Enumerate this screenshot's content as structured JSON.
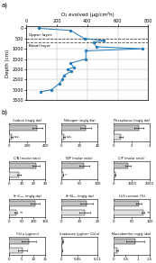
{
  "chart_data": [
    {
      "type": "line",
      "panel_label": "a)",
      "xlabel": "O₂ evolved (μg/cm²h)",
      "ylabel": "Depth (cm)",
      "x": [
        80,
        290,
        380,
        510,
        440,
        460,
        760,
        390,
        390,
        290,
        310,
        270,
        295,
        245,
        235,
        215,
        165,
        95
      ],
      "values": [
        0,
        100,
        500,
        600,
        700,
        900,
        1000,
        1100,
        1500,
        1700,
        1900,
        2000,
        2100,
        2300,
        2500,
        2700,
        3000,
        3100
      ],
      "xlim": [
        0,
        800
      ],
      "xticks": [
        0,
        200,
        400,
        600,
        800
      ],
      "ylim": [
        3500,
        -100
      ],
      "yticks": [
        0,
        500,
        1000,
        1500,
        2000,
        2500,
        3000,
        3500
      ],
      "marker": "o",
      "line_style": "solid",
      "grid": true,
      "hlines": [
        {
          "y": 500,
          "label": "Upper layer"
        },
        {
          "y": 700,
          "label": "Basal layer"
        }
      ]
    },
    {
      "type": "bar",
      "orientation": "horizontal",
      "panel_label": "b)",
      "title": "Carbon (mg/g dw)",
      "categories": [
        null,
        null
      ],
      "values": [
        310,
        28
      ],
      "errors": [
        55,
        8
      ],
      "colors": [
        "#c0c0c0",
        "#e0e0e0"
      ],
      "xlim": [
        0,
        400
      ],
      "xticks": [
        0,
        200,
        400
      ],
      "grid": false,
      "tick_labels": "x",
      "annotations": [
        {
          "text": "s.s.",
          "bar": 1
        }
      ]
    },
    {
      "type": "bar",
      "orientation": "horizontal",
      "title": "Nitrogen (mg/g dw)",
      "categories": [
        null,
        null
      ],
      "values": [
        27,
        3
      ],
      "errors": [
        6,
        0.8
      ],
      "colors": [
        "#c0c0c0",
        "#e0e0e0"
      ],
      "xlim": [
        0,
        40
      ],
      "xticks": [
        0,
        20,
        40
      ],
      "grid": false,
      "tick_labels": "x",
      "annotations": [
        {
          "text": "s.s.",
          "bar": 1
        }
      ]
    },
    {
      "type": "bar",
      "orientation": "horizontal",
      "title": "Phosphorus (mg/g dw)",
      "categories": [
        null,
        null
      ],
      "values": [
        2.8,
        0.8
      ],
      "errors": [
        0.5,
        0.2
      ],
      "colors": [
        "#c0c0c0",
        "#e0e0e0"
      ],
      "xlim": [
        0,
        4
      ],
      "xticks": [
        0,
        2,
        4
      ],
      "grid": false,
      "tick_labels": "x"
    },
    {
      "type": "bar",
      "orientation": "horizontal",
      "title": "C/N (molar ratio)",
      "categories": [
        null,
        null
      ],
      "values": [
        22,
        8
      ],
      "errors": [
        3,
        1.5
      ],
      "colors": [
        "#c0c0c0",
        "#e0e0e0"
      ],
      "xlim": [
        0,
        30
      ],
      "xticks": [
        0,
        10,
        20,
        30
      ],
      "grid": false,
      "tick_labels": "x"
    },
    {
      "type": "bar",
      "orientation": "horizontal",
      "title": "N/P (molar ratio)",
      "categories": [
        null,
        null
      ],
      "values": [
        63,
        4
      ],
      "errors": [
        14,
        0.8
      ],
      "colors": [
        "#c0c0c0",
        "#e0e0e0"
      ],
      "xlim": [
        0,
        100
      ],
      "xticks": [
        0,
        50,
        100
      ],
      "grid": false,
      "tick_labels": "x",
      "annotations": [
        {
          "text": "*",
          "bar": 1
        }
      ]
    },
    {
      "type": "bar",
      "orientation": "horizontal",
      "title": "C/P (molar ratio)",
      "categories": [
        null,
        null
      ],
      "values": [
        800,
        85
      ],
      "errors": [
        150,
        18
      ],
      "colors": [
        "#c0c0c0",
        "#e0e0e0"
      ],
      "xlim": [
        0,
        2000
      ],
      "xticks": [
        0,
        1000,
        2000
      ],
      "grid": false,
      "tick_labels": "x"
    },
    {
      "type": "bar",
      "orientation": "horizontal",
      "title": "δ¹³Cₐₙₐ (mg/g dw)",
      "categories": [
        null,
        null
      ],
      "values": [
        108,
        28
      ],
      "errors": [
        18,
        6
      ],
      "colors": [
        "#c0c0c0",
        "#e0e0e0"
      ],
      "xlim": [
        0,
        150
      ],
      "xticks": [
        0,
        50,
        100,
        150
      ],
      "grid": false,
      "tick_labels": "x",
      "annotations": [
        {
          "text": "**",
          "bar": 1
        }
      ]
    },
    {
      "type": "bar",
      "orientation": "horizontal",
      "title": "δ¹⁵Nₐₙₐ (mg/g dw)",
      "categories": [
        null,
        null
      ],
      "values": [
        14,
        13
      ],
      "errors": [
        3.5,
        3
      ],
      "colors": [
        "#c0c0c0",
        "#e0e0e0"
      ],
      "xlim": [
        0,
        20
      ],
      "xticks": [
        0,
        10,
        20
      ],
      "grid": false,
      "tick_labels": "x"
    },
    {
      "type": "bar",
      "orientation": "horizontal",
      "title": "H₂O content (%)",
      "categories": [
        null,
        null
      ],
      "values": [
        70,
        82
      ],
      "errors": [
        7,
        4
      ],
      "colors": [
        "#c0c0c0",
        "#e0e0e0"
      ],
      "xlim": [
        0,
        100
      ],
      "xticks": [
        0,
        50,
        100
      ],
      "grid": false,
      "tick_labels": "x",
      "annotations": [
        {
          "text": "**",
          "bar": 1
        }
      ]
    },
    {
      "type": "bar",
      "orientation": "horizontal",
      "title": "Chl a (μg/cm²)",
      "categories": [
        null,
        null
      ],
      "values": [
        8,
        5.5
      ],
      "errors": [
        3,
        1.8
      ],
      "colors": [
        "#c0c0c0",
        "#e0e0e0"
      ],
      "xlim": [
        0,
        15
      ],
      "xticks": [
        0,
        5,
        10,
        15
      ],
      "grid": false,
      "tick_labels": "x"
    },
    {
      "type": "bar",
      "orientation": "horizontal",
      "title": "Irradiance (μg/cm² Chl a)",
      "categories": [
        null,
        null
      ],
      "values": [
        0.004,
        0.002
      ],
      "errors": [
        0.0015,
        0.0008
      ],
      "colors": [
        "#c0c0c0",
        "#e0e0e0"
      ],
      "xlim": [
        0,
        0.11
      ],
      "xticks": [
        0,
        0.05,
        0.11
      ],
      "grid": false,
      "tick_labels": "x"
    },
    {
      "type": "bar",
      "orientation": "horizontal",
      "title": "Macrobenthic mg/g (dw)",
      "categories": [
        null,
        null
      ],
      "values": [
        0.9,
        0.14
      ],
      "errors": [
        0.38,
        0.05
      ],
      "colors": [
        "#c0c0c0",
        "#e0e0e0"
      ],
      "xlim": [
        0,
        1.5
      ],
      "xticks": [
        0,
        0.5,
        1,
        1.5
      ],
      "grid": false,
      "tick_labels": "x"
    }
  ]
}
